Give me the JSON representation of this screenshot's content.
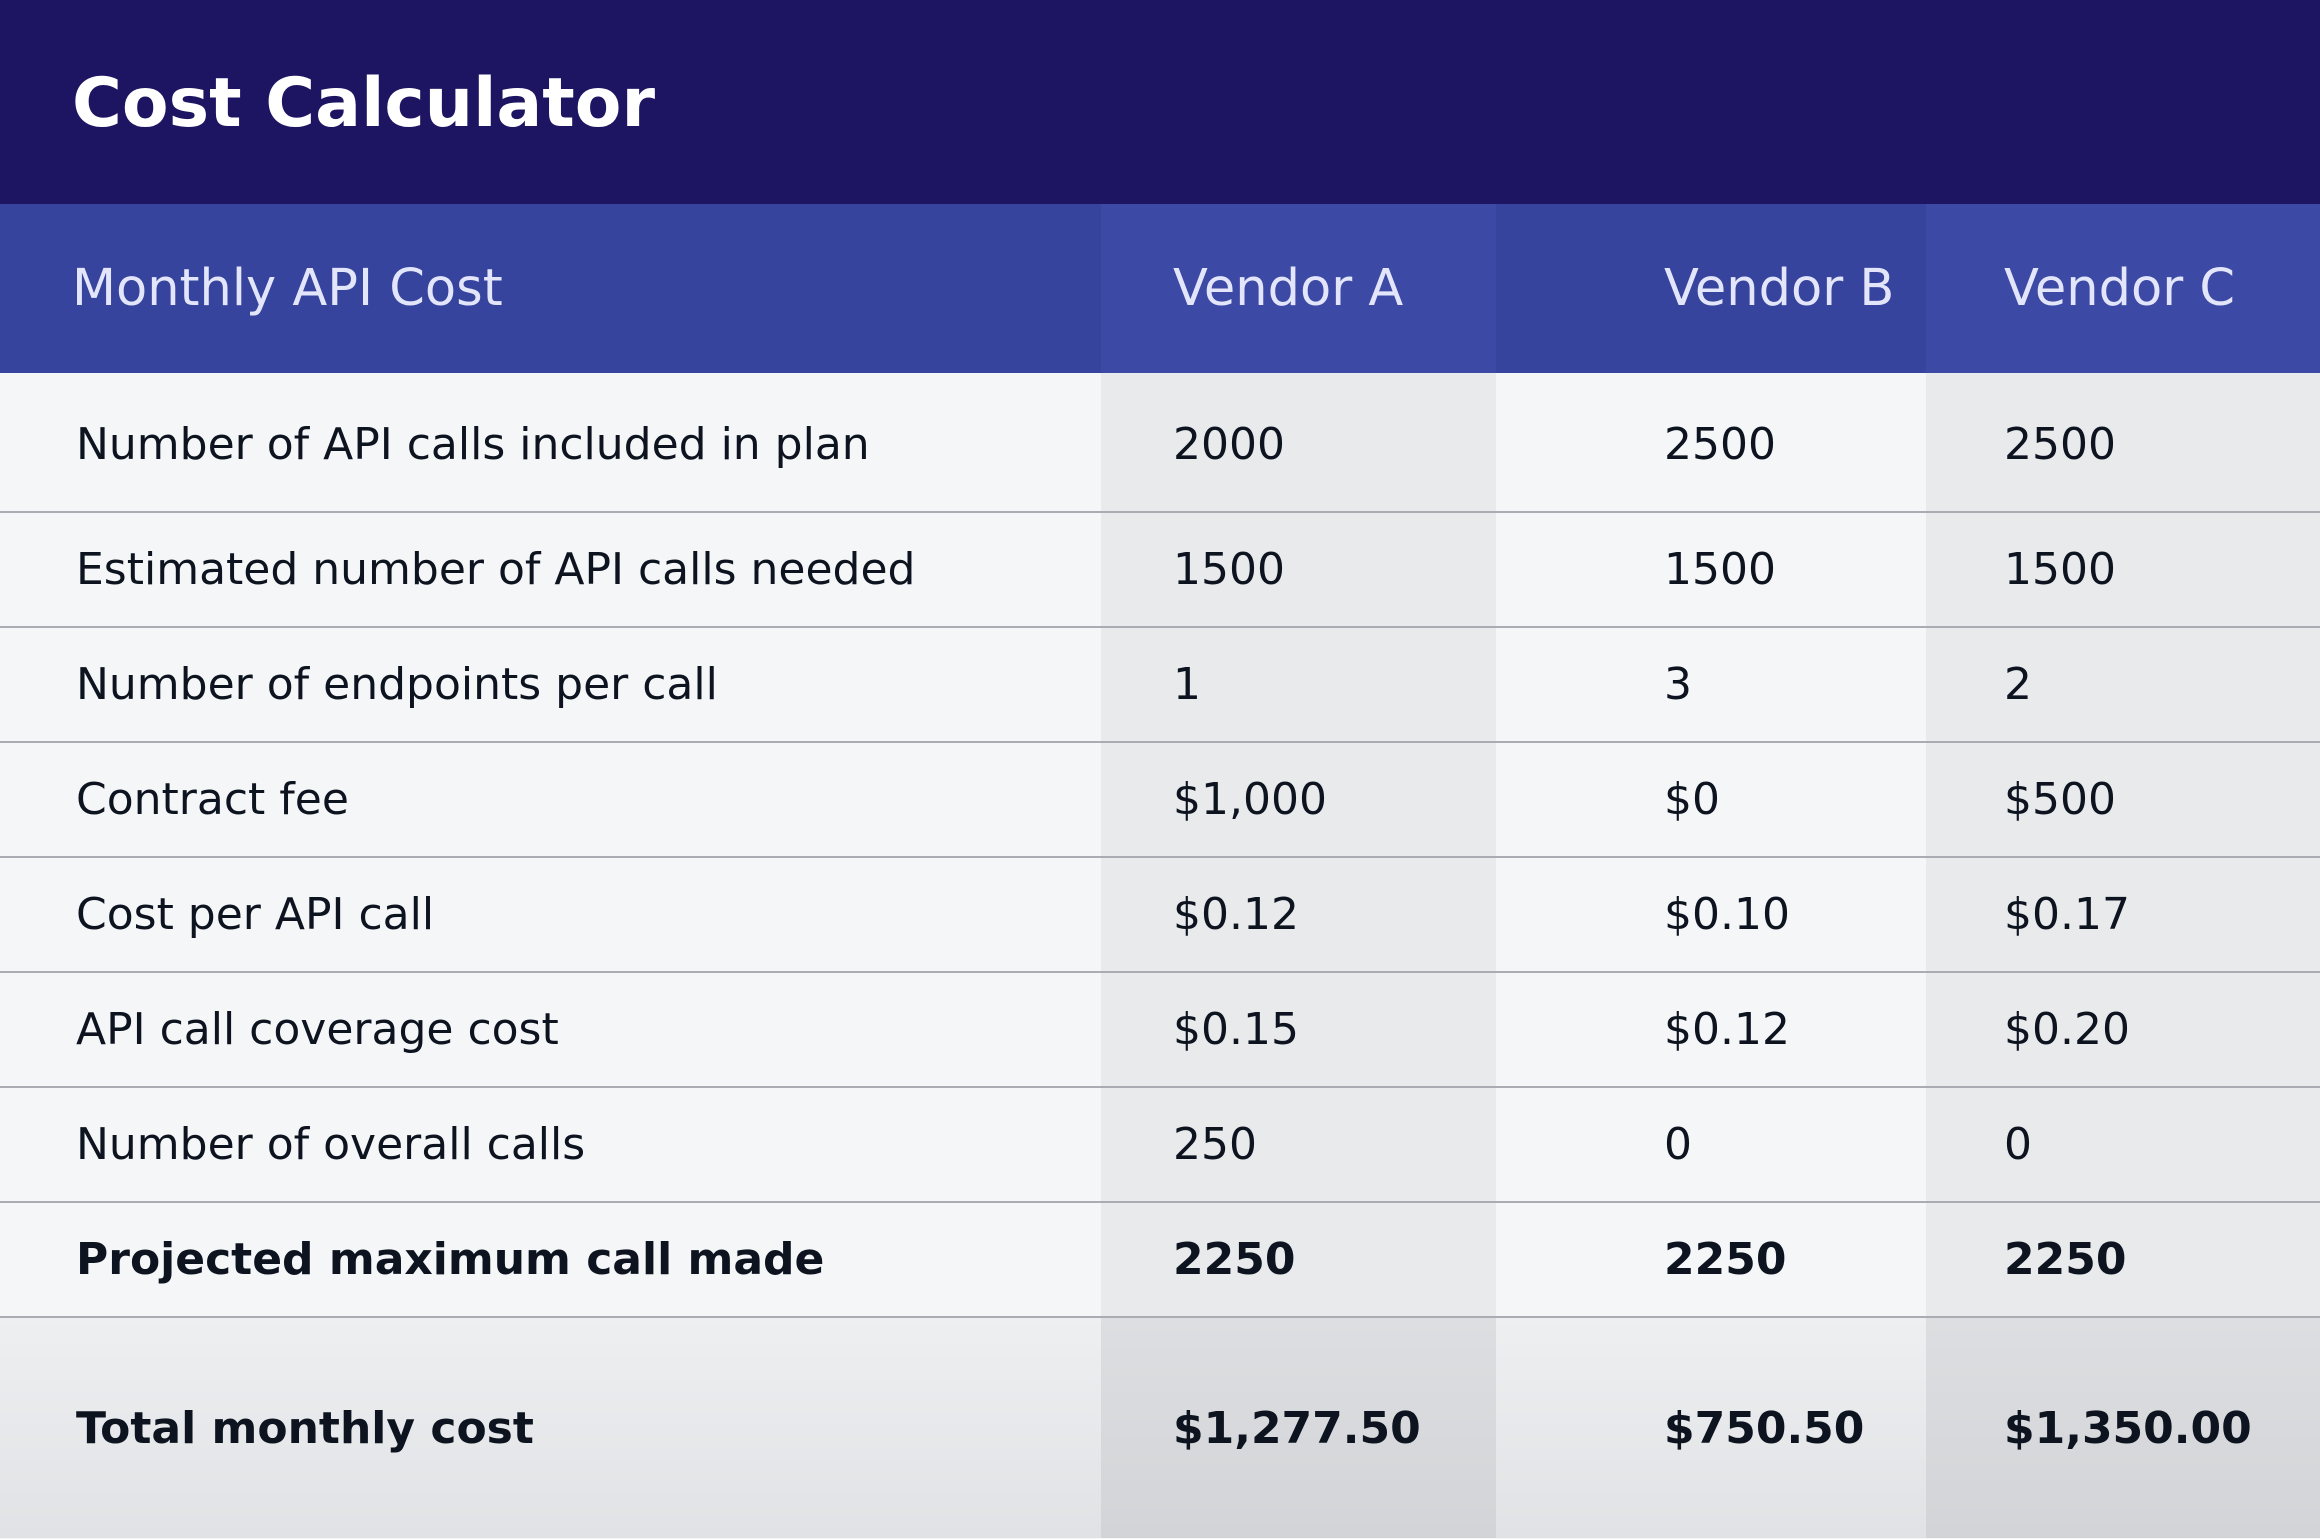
{
  "title": "Cost Calculator",
  "table": {
    "headers": [
      "Monthly API Cost",
      "Vendor A",
      "Vendor B",
      "Vendor C"
    ],
    "rows": [
      {
        "label": "Number of API calls included in plan",
        "values": [
          "2000",
          "2500",
          "2500"
        ]
      },
      {
        "label": "Estimated number of API calls needed",
        "values": [
          "1500",
          "1500",
          "1500"
        ]
      },
      {
        "label": "Number of endpoints per call",
        "values": [
          "1",
          "3",
          "2"
        ]
      },
      {
        "label": "Contract fee",
        "values": [
          "$1,000",
          "$0",
          "$500"
        ]
      },
      {
        "label": "Cost per API call",
        "values": [
          "$0.12",
          "$0.10",
          "$0.17"
        ]
      },
      {
        "label": "API call coverage cost",
        "values": [
          "$0.15",
          "$0.12",
          "$0.20"
        ]
      },
      {
        "label": "Number of overall calls",
        "values": [
          "250",
          "0",
          "0"
        ]
      },
      {
        "label": "Projected maximum call made",
        "values": [
          "2250",
          "2250",
          "2250"
        ]
      },
      {
        "label": "Total monthly cost",
        "values": [
          "$1,277.50",
          "$750.50",
          "$1,350.00"
        ]
      }
    ]
  },
  "colors": {
    "title_bar": "#1d1562",
    "header_bg": "#36449d",
    "header_bg_alt": "#3c4aa5",
    "header_text": "#e3e6fa",
    "row_bg": "#f4f6f8",
    "row_bg_alt": "#e8eaec",
    "divider": "#a9adb3"
  }
}
